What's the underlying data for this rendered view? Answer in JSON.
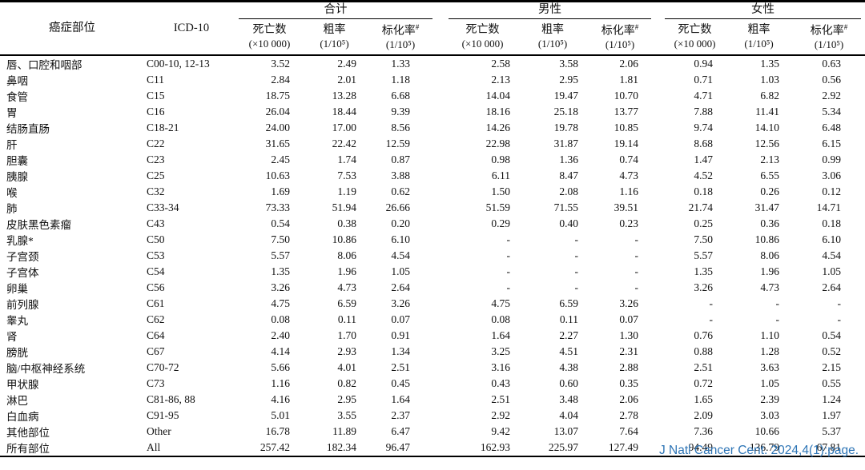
{
  "header": {
    "site": "癌症部位",
    "icd": "ICD-10",
    "groups": [
      {
        "label": "合计"
      },
      {
        "label": "男性"
      },
      {
        "label": "女性"
      }
    ],
    "metrics": {
      "deaths": "死亡数",
      "deaths_unit": "(×10 000)",
      "crude": "粗率",
      "crude_unit": "(1/10⁵)",
      "asr": "标化率",
      "asr_marker": "#",
      "asr_unit": "(1/10⁵)"
    }
  },
  "rows": [
    {
      "site": "唇、口腔和咽部",
      "icd": "C00-10, 12-13",
      "values": [
        "3.52",
        "2.49",
        "1.33",
        "2.58",
        "3.58",
        "2.06",
        "0.94",
        "1.35",
        "0.63"
      ]
    },
    {
      "site": "鼻咽",
      "icd": "C11",
      "values": [
        "2.84",
        "2.01",
        "1.18",
        "2.13",
        "2.95",
        "1.81",
        "0.71",
        "1.03",
        "0.56"
      ]
    },
    {
      "site": "食管",
      "icd": "C15",
      "values": [
        "18.75",
        "13.28",
        "6.68",
        "14.04",
        "19.47",
        "10.70",
        "4.71",
        "6.82",
        "2.92"
      ]
    },
    {
      "site": "胃",
      "icd": "C16",
      "values": [
        "26.04",
        "18.44",
        "9.39",
        "18.16",
        "25.18",
        "13.77",
        "7.88",
        "11.41",
        "5.34"
      ]
    },
    {
      "site": "结肠直肠",
      "icd": "C18-21",
      "values": [
        "24.00",
        "17.00",
        "8.56",
        "14.26",
        "19.78",
        "10.85",
        "9.74",
        "14.10",
        "6.48"
      ]
    },
    {
      "site": "肝",
      "icd": "C22",
      "values": [
        "31.65",
        "22.42",
        "12.59",
        "22.98",
        "31.87",
        "19.14",
        "8.68",
        "12.56",
        "6.15"
      ]
    },
    {
      "site": "胆囊",
      "icd": "C23",
      "values": [
        "2.45",
        "1.74",
        "0.87",
        "0.98",
        "1.36",
        "0.74",
        "1.47",
        "2.13",
        "0.99"
      ]
    },
    {
      "site": "胰腺",
      "icd": "C25",
      "values": [
        "10.63",
        "7.53",
        "3.88",
        "6.11",
        "8.47",
        "4.73",
        "4.52",
        "6.55",
        "3.06"
      ]
    },
    {
      "site": "喉",
      "icd": "C32",
      "values": [
        "1.69",
        "1.19",
        "0.62",
        "1.50",
        "2.08",
        "1.16",
        "0.18",
        "0.26",
        "0.12"
      ]
    },
    {
      "site": "肺",
      "icd": "C33-34",
      "values": [
        "73.33",
        "51.94",
        "26.66",
        "51.59",
        "71.55",
        "39.51",
        "21.74",
        "31.47",
        "14.71"
      ]
    },
    {
      "site": "皮肤黑色素瘤",
      "icd": "C43",
      "values": [
        "0.54",
        "0.38",
        "0.20",
        "0.29",
        "0.40",
        "0.23",
        "0.25",
        "0.36",
        "0.18"
      ]
    },
    {
      "site": "乳腺*",
      "icd": "C50",
      "values": [
        "7.50",
        "10.86",
        "6.10",
        "-",
        "-",
        "-",
        "7.50",
        "10.86",
        "6.10"
      ]
    },
    {
      "site": "子宫颈",
      "icd": "C53",
      "values": [
        "5.57",
        "8.06",
        "4.54",
        "-",
        "-",
        "-",
        "5.57",
        "8.06",
        "4.54"
      ]
    },
    {
      "site": "子宫体",
      "icd": "C54",
      "values": [
        "1.35",
        "1.96",
        "1.05",
        "-",
        "-",
        "-",
        "1.35",
        "1.96",
        "1.05"
      ]
    },
    {
      "site": "卵巢",
      "icd": "C56",
      "values": [
        "3.26",
        "4.73",
        "2.64",
        "-",
        "-",
        "-",
        "3.26",
        "4.73",
        "2.64"
      ]
    },
    {
      "site": "前列腺",
      "icd": "C61",
      "values": [
        "4.75",
        "6.59",
        "3.26",
        "4.75",
        "6.59",
        "3.26",
        "-",
        "-",
        "-"
      ]
    },
    {
      "site": "睾丸",
      "icd": "C62",
      "values": [
        "0.08",
        "0.11",
        "0.07",
        "0.08",
        "0.11",
        "0.07",
        "-",
        "-",
        "-"
      ]
    },
    {
      "site": "肾",
      "icd": "C64",
      "values": [
        "2.40",
        "1.70",
        "0.91",
        "1.64",
        "2.27",
        "1.30",
        "0.76",
        "1.10",
        "0.54"
      ]
    },
    {
      "site": "膀胱",
      "icd": "C67",
      "values": [
        "4.14",
        "2.93",
        "1.34",
        "3.25",
        "4.51",
        "2.31",
        "0.88",
        "1.28",
        "0.52"
      ]
    },
    {
      "site": "脑/中枢神经系统",
      "icd": "C70-72",
      "values": [
        "5.66",
        "4.01",
        "2.51",
        "3.16",
        "4.38",
        "2.88",
        "2.51",
        "3.63",
        "2.15"
      ]
    },
    {
      "site": "甲状腺",
      "icd": "C73",
      "values": [
        "1.16",
        "0.82",
        "0.45",
        "0.43",
        "0.60",
        "0.35",
        "0.72",
        "1.05",
        "0.55"
      ]
    },
    {
      "site": "淋巴",
      "icd": "C81-86, 88",
      "values": [
        "4.16",
        "2.95",
        "1.64",
        "2.51",
        "3.48",
        "2.06",
        "1.65",
        "2.39",
        "1.24"
      ]
    },
    {
      "site": "白血病",
      "icd": "C91-95",
      "values": [
        "5.01",
        "3.55",
        "2.37",
        "2.92",
        "4.04",
        "2.78",
        "2.09",
        "3.03",
        "1.97"
      ]
    },
    {
      "site": "其他部位",
      "icd": "Other",
      "values": [
        "16.78",
        "11.89",
        "6.47",
        "9.42",
        "13.07",
        "7.64",
        "7.36",
        "10.66",
        "5.37"
      ]
    },
    {
      "site": "所有部位",
      "icd": "All",
      "values": [
        "257.42",
        "182.34",
        "96.47",
        "162.93",
        "225.97",
        "127.49",
        "94.49",
        "136.79",
        "67.81"
      ]
    }
  ],
  "footer": {
    "citation": "J Natl Cancer Cent. 2024,4(1):page.",
    "citation_color": "#2e75b6"
  },
  "colors": {
    "rule": "#000000",
    "text": "#111111",
    "background": "#ffffff"
  }
}
